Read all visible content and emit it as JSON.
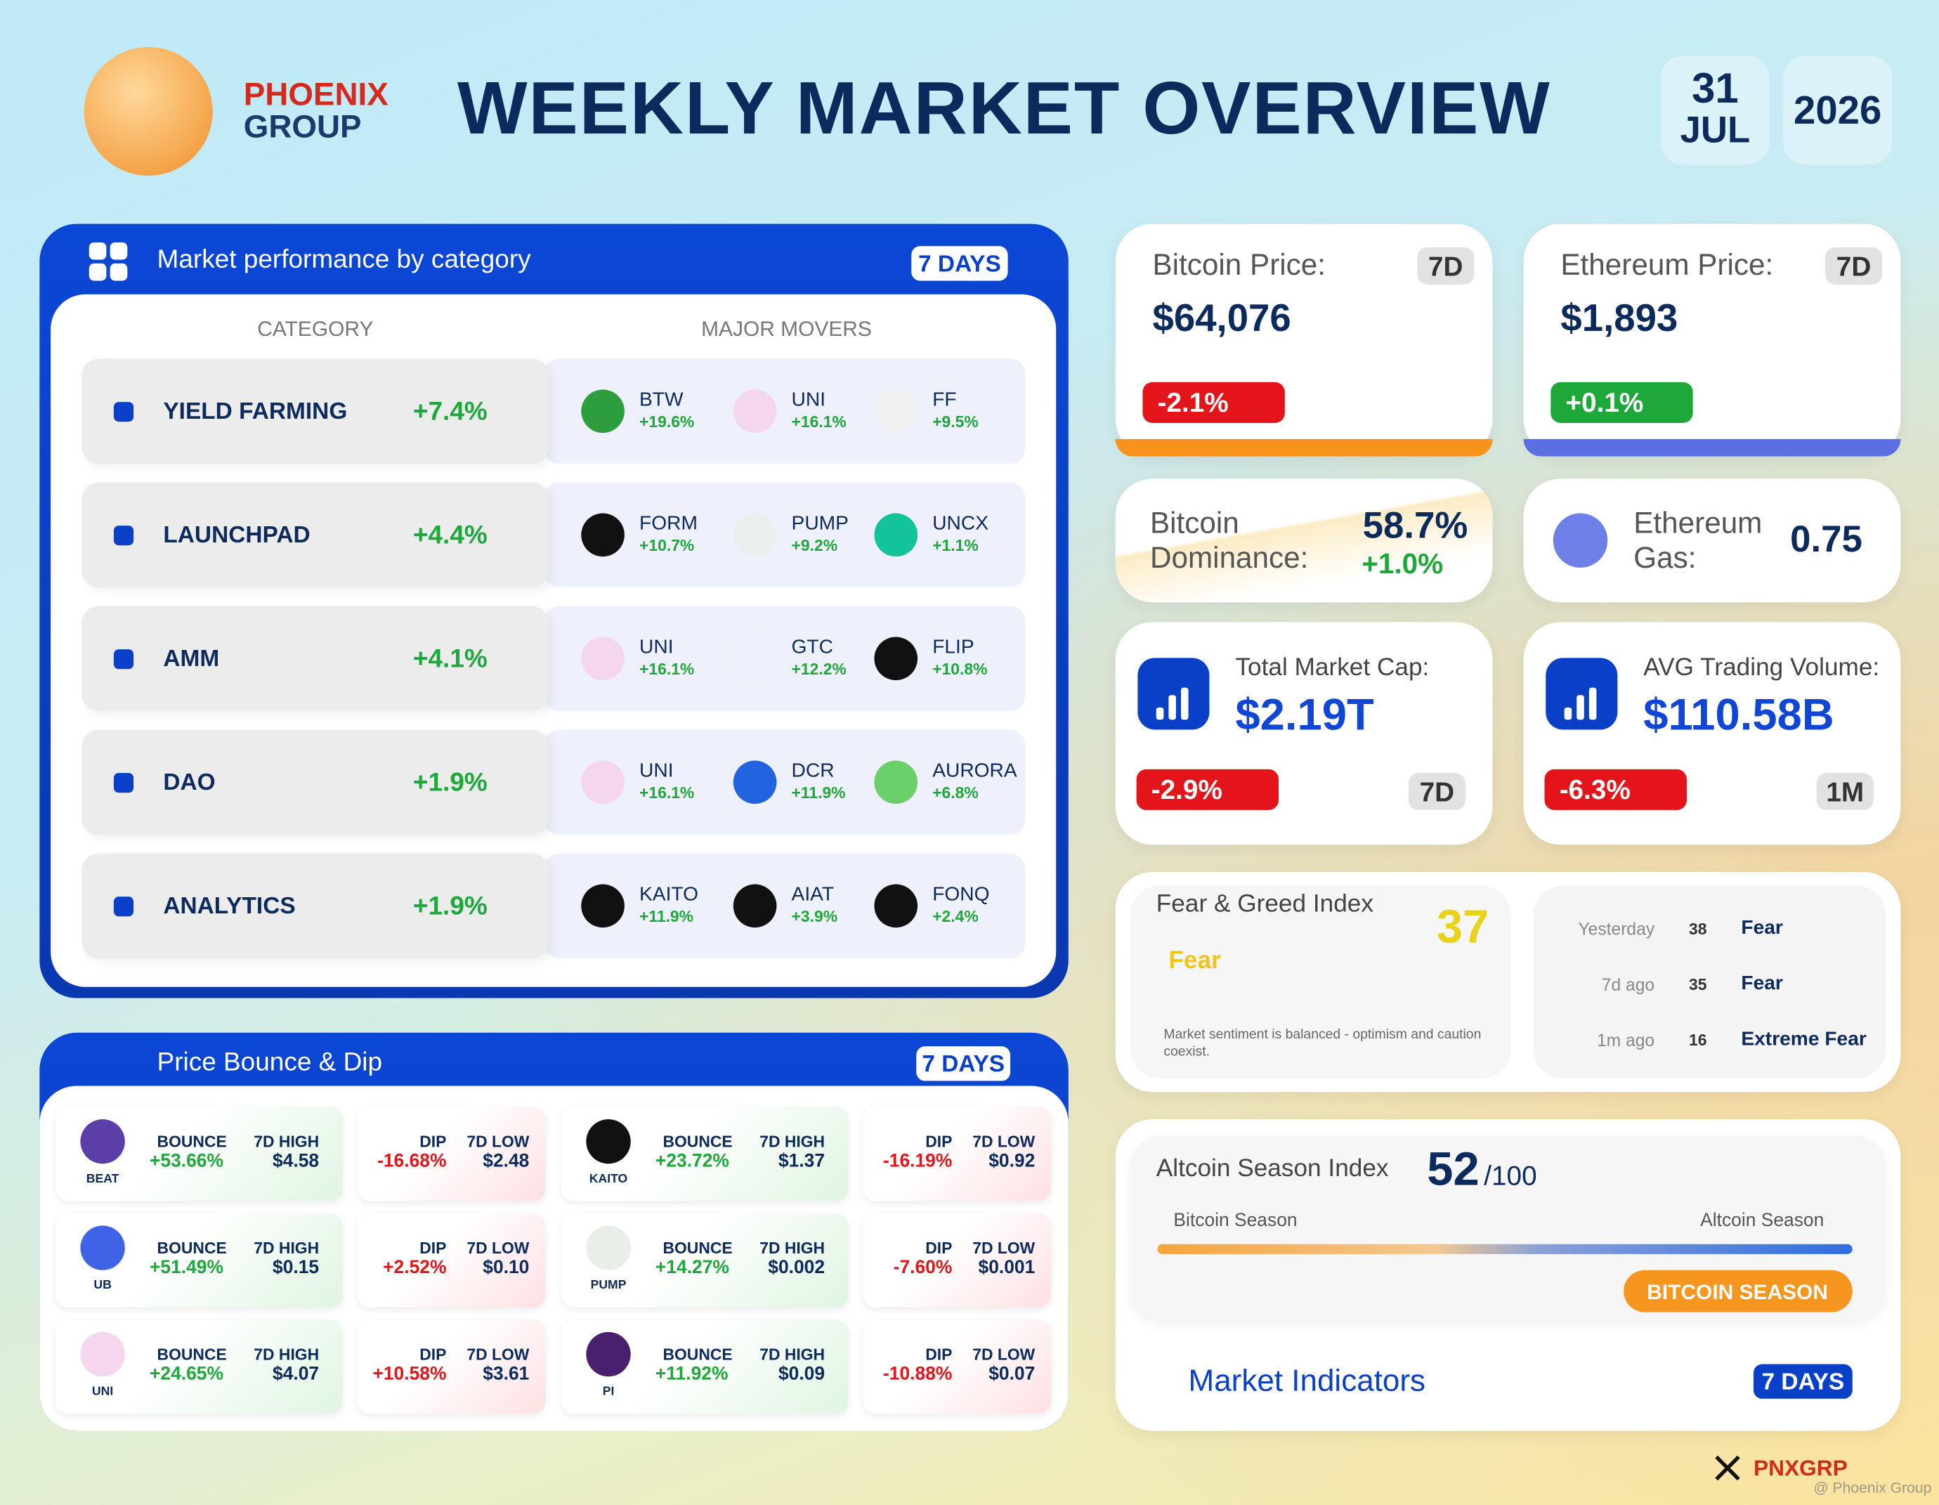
{
  "header": {
    "brand": [
      "PHOENIX",
      "GROUP"
    ],
    "title": "WEEKLY MARKET OVERVIEW",
    "date": {
      "day": "31",
      "month": "JUL",
      "year": "2026"
    }
  },
  "category_panel": {
    "title": "Market performance by category",
    "period": "7 DAYS",
    "columns": [
      "CATEGORY",
      "MAJOR MOVERS"
    ],
    "rows": [
      {
        "name": "YIELD FARMING",
        "change": "+7.4%",
        "movers": [
          {
            "symbol": "BTW",
            "change": "+19.6%"
          },
          {
            "symbol": "UNI",
            "change": "+16.1%"
          },
          {
            "symbol": "FF",
            "change": "+9.5%"
          }
        ]
      },
      {
        "name": "LAUNCHPAD",
        "change": "+4.4%",
        "movers": [
          {
            "symbol": "FORM",
            "change": "+10.7%"
          },
          {
            "symbol": "PUMP",
            "change": "+9.2%"
          },
          {
            "symbol": "UNCX",
            "change": "+1.1%"
          }
        ]
      },
      {
        "name": "AMM",
        "change": "+4.1%",
        "movers": [
          {
            "symbol": "UNI",
            "change": "+16.1%"
          },
          {
            "symbol": "GTC",
            "change": "+12.2%"
          },
          {
            "symbol": "FLIP",
            "change": "+10.8%"
          }
        ]
      },
      {
        "name": "DAO",
        "change": "+1.9%",
        "movers": [
          {
            "symbol": "UNI",
            "change": "+16.1%"
          },
          {
            "symbol": "DCR",
            "change": "+11.9%"
          },
          {
            "symbol": "AURORA",
            "change": "+6.8%"
          }
        ]
      },
      {
        "name": "ANALYTICS",
        "change": "+1.9%",
        "movers": [
          {
            "symbol": "KAITO",
            "change": "+11.9%"
          },
          {
            "symbol": "AIAT",
            "change": "+3.9%"
          },
          {
            "symbol": "FONQ",
            "change": "+2.4%"
          }
        ]
      }
    ]
  },
  "bounce_panel": {
    "title": "Price Bounce & Dip",
    "period": "7 DAYS",
    "labels": {
      "bounce": "BOUNCE",
      "high": "7D HIGH",
      "dip": "DIP",
      "low": "7D LOW"
    },
    "tokens": [
      {
        "token": "BEAT",
        "bounce": "+53.66%",
        "high": "$4.58",
        "dip": "-16.68%",
        "low": "$2.48"
      },
      {
        "token": "KAITO",
        "bounce": "+23.72%",
        "high": "$1.37",
        "dip": "-16.19%",
        "low": "$0.92"
      },
      {
        "token": "UB",
        "bounce": "+51.49%",
        "high": "$0.15",
        "dip": "+2.52%",
        "low": "$0.10"
      },
      {
        "token": "PUMP",
        "bounce": "+14.27%",
        "high": "$0.002",
        "dip": "-7.60%",
        "low": "$0.001"
      },
      {
        "token": "UNI",
        "bounce": "+24.65%",
        "high": "$4.07",
        "dip": "+10.58%",
        "low": "$3.61"
      },
      {
        "token": "PI",
        "bounce": "+11.92%",
        "high": "$0.09",
        "dip": "-10.88%",
        "low": "$0.07"
      }
    ]
  },
  "bitcoin_price": {
    "label": "Bitcoin Price:",
    "value": "$64,076",
    "change": "-2.1%",
    "period": "7D"
  },
  "ethereum_price": {
    "label": "Ethereum Price:",
    "value": "$1,893",
    "change": "+0.1%",
    "period": "7D"
  },
  "bitcoin_dominance": {
    "label": [
      "Bitcoin",
      "Dominance:"
    ],
    "value": "58.7%",
    "change": "+1.0%"
  },
  "ethereum_gas": {
    "label": [
      "Ethereum",
      "Gas:"
    ],
    "value": "0.75"
  },
  "total_market_cap": {
    "label": "Total Market Cap:",
    "value": "$2.19T",
    "change": "-2.9%",
    "period": "7D"
  },
  "avg_trading_volume": {
    "label": "AVG Trading Volume:",
    "value": "$110.58B",
    "change": "-6.3%",
    "period": "1M"
  },
  "fear_greed": {
    "title": "Fear & Greed Index",
    "value": 37,
    "label": "Fear",
    "description": "Market sentiment is balanced - optimism and caution coexist.",
    "history": [
      {
        "when": "Yesterday",
        "value": 38,
        "label": "Fear"
      },
      {
        "when": "7d ago",
        "value": 35,
        "label": "Fear"
      },
      {
        "when": "1m ago",
        "value": 16,
        "label": "Extreme Fear"
      }
    ]
  },
  "altcoin_season": {
    "title": "Altcoin Season Index",
    "value": 52,
    "scale": "/100",
    "left_label": "Bitcoin Season",
    "right_label": "Altcoin Season",
    "status": "BITCOIN SEASON"
  },
  "footer": {
    "indicators": "Market Indicators",
    "period": "7 DAYS",
    "handle": "PNXGRP",
    "watermark": "@ Phoenix Group"
  }
}
